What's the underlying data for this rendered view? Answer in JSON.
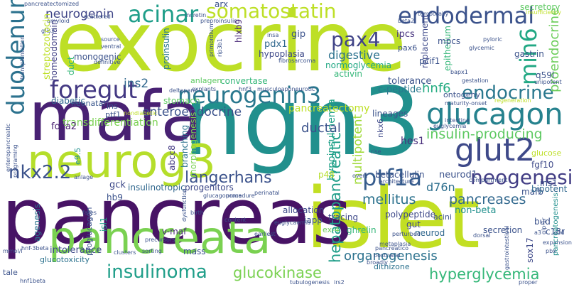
{
  "words": [
    {
      "text": "exocrine",
      "color": "#bddf26"
    },
    {
      "text": "ngn3",
      "color": "#21908d"
    },
    {
      "text": "islet",
      "color": "#c2df23"
    },
    {
      "text": "pancreas",
      "color": "#471365"
    },
    {
      "text": "mafa",
      "color": "#482173"
    },
    {
      "text": "neurog3",
      "color": "#b5de2b"
    },
    {
      "text": "pancreata",
      "color": "#7ad151"
    },
    {
      "text": "glucagon",
      "color": "#26828e"
    },
    {
      "text": "duodenum",
      "color": "#2c728e"
    },
    {
      "text": "neurogenin3",
      "color": "#2a788e"
    },
    {
      "text": "endodermal",
      "color": "#3b528b"
    },
    {
      "text": "somatostatin",
      "color": "#bddf26"
    },
    {
      "text": "acinar",
      "color": "#1f9e89"
    },
    {
      "text": "glut2",
      "color": "#3e4989"
    },
    {
      "text": "foregut",
      "color": "#443983"
    },
    {
      "text": "endocrine",
      "color": "#2a788e"
    },
    {
      "text": "neogenesis",
      "color": "#433e85"
    },
    {
      "text": "ptf1a",
      "color": "#365c8d"
    },
    {
      "text": "insulinoma",
      "color": "#1f9e89"
    },
    {
      "text": "nkx2.2",
      "color": "#3b528b"
    },
    {
      "text": "pax4",
      "color": "#414487"
    },
    {
      "text": "min6",
      "color": "#22a884"
    },
    {
      "text": "hyperglycemia",
      "color": "#35b779"
    },
    {
      "text": "langerhans",
      "color": "#3b528b"
    },
    {
      "text": "glucokinase",
      "color": "#7ad151"
    },
    {
      "text": "insulin-producing",
      "color": "#5ec962"
    },
    {
      "text": "hepatopancreatic",
      "color": "#1f9e89"
    },
    {
      "text": "proendocrine",
      "color": "#6ccd5a"
    },
    {
      "text": "mellitus",
      "color": "#2c728e"
    },
    {
      "text": "pancreases",
      "color": "#31688e"
    },
    {
      "text": "organogenesis",
      "color": "#2c728e"
    },
    {
      "text": "enteroendocrine",
      "color": "#3b528b"
    },
    {
      "text": "neurogenin",
      "color": "#404688"
    },
    {
      "text": "multipotent",
      "color": "#a0da39"
    },
    {
      "text": "digestive",
      "color": "#2c728e"
    },
    {
      "text": "hnf6",
      "color": "#25ac82"
    },
    {
      "text": "ins2",
      "color": "#31688e"
    },
    {
      "text": "d76n",
      "color": "#2e6f8e"
    },
    {
      "text": "neurod1",
      "color": "#3b528b"
    },
    {
      "text": "hypoinsulinemia",
      "color": "#1fa187"
    },
    {
      "text": "transdifferentiation",
      "color": "#7ad151"
    },
    {
      "text": "ductal",
      "color": "#3b528b"
    },
    {
      "text": "pancreatectomy",
      "color": "#bddf26"
    },
    {
      "text": "c-peptide",
      "color": "#2a788e"
    },
    {
      "text": "tolerance",
      "color": "#3b528b"
    },
    {
      "text": "ipcs",
      "color": "#46327e"
    },
    {
      "text": "gip",
      "color": "#3b528b"
    },
    {
      "text": "pdx1",
      "color": "#31688e"
    },
    {
      "text": "hypoplasia",
      "color": "#3e4989"
    },
    {
      "text": "normoglycemia",
      "color": "#22a884"
    },
    {
      "text": "activin",
      "color": "#35b779"
    },
    {
      "text": "monogenic",
      "color": "#3b528b"
    },
    {
      "text": "homeodomain",
      "color": "#424086"
    },
    {
      "text": "diabetic",
      "color": "#31688e"
    },
    {
      "text": "duct",
      "color": "#35b779"
    },
    {
      "text": "agenesis",
      "color": "#2c728e"
    },
    {
      "text": "intolerance",
      "color": "#3e4989"
    },
    {
      "text": "glucotoxicity",
      "color": "#2c728e"
    },
    {
      "text": "proinsulin",
      "color": "#2a788e"
    },
    {
      "text": "hlxb9",
      "color": "#482878"
    },
    {
      "text": "stomach",
      "color": "#5ec962"
    },
    {
      "text": "convertase",
      "color": "#35b779"
    },
    {
      "text": "anlagen",
      "color": "#5ec962"
    },
    {
      "text": "neonatal",
      "color": "#39568c"
    },
    {
      "text": "gck",
      "color": "#3e4989"
    },
    {
      "text": "hb9",
      "color": "#3b528b"
    },
    {
      "text": "isl1",
      "color": "#1fa187"
    },
    {
      "text": "foxa2",
      "color": "#481f70"
    },
    {
      "text": "progenitors",
      "color": "#3e4989"
    },
    {
      "text": "insulinotropic",
      "color": "#31688e"
    },
    {
      "text": "v-maf",
      "color": "#482878"
    },
    {
      "text": "mass",
      "color": "#3b528b"
    },
    {
      "text": "proglucagon",
      "color": "#3b528b"
    },
    {
      "text": "abcc8",
      "color": "#443983"
    },
    {
      "text": "branching",
      "color": "#2c728e"
    },
    {
      "text": "morphogenesis",
      "color": "#7ad151"
    },
    {
      "text": "betacellulin",
      "color": "#3b528b"
    },
    {
      "text": "hes1",
      "color": "#472d7b"
    },
    {
      "text": "nkx6",
      "color": "#3e4989"
    },
    {
      "text": "p48",
      "color": "#b5de2b"
    },
    {
      "text": "allocation",
      "color": "#3e4989"
    },
    {
      "text": "iapp",
      "color": "#3b528b"
    },
    {
      "text": "tracing",
      "color": "#3e4989"
    },
    {
      "text": "ghrelin",
      "color": "#35b779"
    },
    {
      "text": "ex-4",
      "color": "#6ccd5a"
    },
    {
      "text": "polypeptide",
      "color": "#3e4989"
    },
    {
      "text": "gut",
      "color": "#3e4989"
    },
    {
      "text": "neurod",
      "color": "#31688e"
    },
    {
      "text": "secretion",
      "color": "#3b528b"
    },
    {
      "text": "dithizone",
      "color": "#2c728e"
    },
    {
      "text": "acini",
      "color": "#3b528b"
    },
    {
      "text": "non-beta",
      "color": "#21908d"
    },
    {
      "text": "mafb",
      "color": "#3b528b"
    },
    {
      "text": "ins1",
      "color": "#3b528b"
    },
    {
      "text": "bipotent",
      "color": "#31688e"
    },
    {
      "text": "fgf10",
      "color": "#3e4989"
    },
    {
      "text": "glucose",
      "color": "#bddf26"
    },
    {
      "text": "bud",
      "color": "#3b528b"
    },
    {
      "text": "c18r",
      "color": "#3b528b"
    },
    {
      "text": "sox17",
      "color": "#3e4989"
    },
    {
      "text": "q59l",
      "color": "#3b528b"
    },
    {
      "text": "gastrin",
      "color": "#3b528b"
    },
    {
      "text": "replacement",
      "color": "#3e4989"
    },
    {
      "text": "epithelium",
      "color": "#35b779"
    },
    {
      "text": "pcif1",
      "color": "#3b528b"
    },
    {
      "text": "mpcs",
      "color": "#3b528b"
    },
    {
      "text": "pax6",
      "color": "#3b528b"
    },
    {
      "text": "secretory",
      "color": "#5ec962"
    },
    {
      "text": "ontogeny",
      "color": "#3b528b"
    },
    {
      "text": "lineages",
      "color": "#3b528b"
    },
    {
      "text": "arx",
      "color": "#3b528b"
    },
    {
      "text": "ptf1",
      "color": "#3b528b"
    },
    {
      "text": "ins",
      "color": "#3b528b"
    },
    {
      "text": "e9.5",
      "color": "#21908d"
    },
    {
      "text": "pancreatectomized",
      "color": "#3b528b"
    },
    {
      "text": "scattered",
      "color": "#3b528b"
    },
    {
      "text": "amyloid",
      "color": "#3b528b"
    },
    {
      "text": "glis3",
      "color": "#3b528b"
    },
    {
      "text": "transplantation",
      "color": "#3b528b"
    },
    {
      "text": "incretin",
      "color": "#3b528b"
    },
    {
      "text": "preproinsulin",
      "color": "#3b528b"
    },
    {
      "text": "source",
      "color": "#3b528b"
    },
    {
      "text": "ventral",
      "color": "#3b528b"
    },
    {
      "text": "definitive",
      "color": "#3b528b"
    },
    {
      "text": "primordium",
      "color": "#3b528b"
    },
    {
      "text": "rip3b1",
      "color": "#3b528b"
    },
    {
      "text": "insa",
      "color": "#3b528b"
    },
    {
      "text": "beta2",
      "color": "#3b528b"
    },
    {
      "text": "temporally",
      "color": "#3b528b"
    },
    {
      "text": "insufficiency",
      "color": "#bddf26"
    },
    {
      "text": "pyloric",
      "color": "#3b528b"
    },
    {
      "text": "glycemic",
      "color": "#3b528b"
    },
    {
      "text": "bapx1",
      "color": "#3b528b"
    },
    {
      "text": "gestation",
      "color": "#3b528b"
    },
    {
      "text": "unipotent",
      "color": "#3b528b"
    },
    {
      "text": "maturity-onset",
      "color": "#3b528b"
    },
    {
      "text": "regeneration",
      "color": "#bddf26"
    },
    {
      "text": "intestine",
      "color": "#3b528b"
    },
    {
      "text": "euglycemia",
      "color": "#3b528b"
    },
    {
      "text": "fibrosarcoma",
      "color": "#3b528b"
    },
    {
      "text": "explants",
      "color": "#3b528b"
    },
    {
      "text": "deltapanc",
      "color": "#3b528b"
    },
    {
      "text": "hnf3",
      "color": "#3b528b"
    },
    {
      "text": "nondiabetic",
      "color": "#bddf26"
    },
    {
      "text": "glucagonoma",
      "color": "#3b528b"
    },
    {
      "text": "procedure",
      "color": "#3b528b"
    },
    {
      "text": "birth",
      "color": "#3b528b"
    },
    {
      "text": "content",
      "color": "#3b528b"
    },
    {
      "text": "earliest",
      "color": "#3b528b"
    },
    {
      "text": "clusters",
      "color": "#3b528b"
    },
    {
      "text": "sorting",
      "color": "#3b528b"
    },
    {
      "text": "tubulogenesis",
      "color": "#3b528b"
    },
    {
      "text": "postnatal",
      "color": "#3b528b"
    },
    {
      "text": "broadly",
      "color": "#3b528b"
    },
    {
      "text": "metaplasia",
      "color": "#3b528b"
    },
    {
      "text": "dorsal",
      "color": "#3b528b"
    },
    {
      "text": "expansion",
      "color": "#3b528b"
    },
    {
      "text": "proper",
      "color": "#3b528b"
    },
    {
      "text": "perturbed",
      "color": "#3b528b"
    },
    {
      "text": "compartment",
      "color": "#3b528b"
    },
    {
      "text": "architecture",
      "color": "#3b528b"
    },
    {
      "text": "perinatal",
      "color": "#3b528b"
    },
    {
      "text": "overt",
      "color": "#3b528b"
    },
    {
      "text": "rise",
      "color": "#3b528b"
    },
    {
      "text": "gastrointestinal",
      "color": "#3b528b"
    },
    {
      "text": "pancreatogenesis",
      "color": "#21908d"
    },
    {
      "text": "c2d",
      "color": "#3b528b"
    },
    {
      "text": "pbx",
      "color": "#3b528b"
    },
    {
      "text": "glp-1r",
      "color": "#3b528b"
    },
    {
      "text": "a3",
      "color": "#3b528b"
    },
    {
      "text": "hnf-3beta",
      "color": "#3b528b"
    },
    {
      "text": "hnf1beta",
      "color": "#3b528b"
    },
    {
      "text": "mmol/l",
      "color": "#3b528b"
    },
    {
      "text": "tale",
      "color": "#3b528b"
    },
    {
      "text": "anlage",
      "color": "#3b528b"
    },
    {
      "text": "fates",
      "color": "#3b528b"
    },
    {
      "text": "precursors",
      "color": "#3b528b"
    },
    {
      "text": "programing",
      "color": "#3b528b"
    },
    {
      "text": "dysfunction",
      "color": "#3b528b"
    },
    {
      "text": "enteropancreatic",
      "color": "#3b528b"
    },
    {
      "text": "streptozotocin",
      "color": "#bddf26"
    },
    {
      "text": "musculoaponeurotic",
      "color": "#3b528b"
    },
    {
      "text": "pancreatico",
      "color": "#3b528b"
    },
    {
      "text": "euglycaemia",
      "color": "#3b528b"
    },
    {
      "text": "irs2",
      "color": "#3b528b"
    }
  ]
}
